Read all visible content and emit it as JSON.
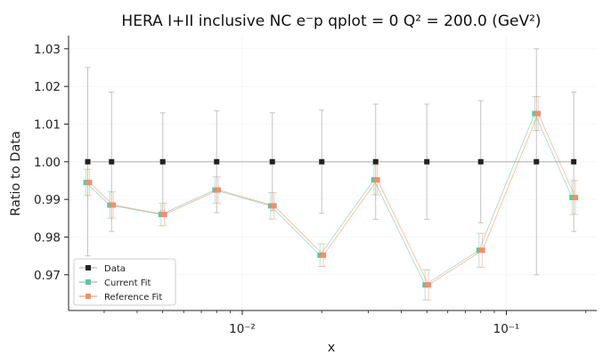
{
  "chart_data": {
    "type": "scatter",
    "title": "HERA I+II inclusive NC e⁻p qplot = 0 Q² = 200.0 (GeV²)",
    "xlabel": "x",
    "ylabel": "Ratio to Data",
    "xscale": "log",
    "xlim": [
      0.0022,
      0.22
    ],
    "ylim": [
      0.9605,
      1.0335
    ],
    "x_ticks": [
      {
        "value": 0.01,
        "label": "10⁻²"
      },
      {
        "value": 0.1,
        "label": "10⁻¹"
      }
    ],
    "y_ticks": [
      {
        "value": 0.97,
        "label": "0.97"
      },
      {
        "value": 0.98,
        "label": "0.98"
      },
      {
        "value": 0.99,
        "label": "0.99"
      },
      {
        "value": 1.0,
        "label": "1.00"
      },
      {
        "value": 1.01,
        "label": "1.01"
      },
      {
        "value": 1.02,
        "label": "1.02"
      },
      {
        "value": 1.03,
        "label": "1.03"
      }
    ],
    "grid": true,
    "legend_position": "lower-left",
    "x": [
      0.0026,
      0.0032,
      0.005,
      0.008,
      0.013,
      0.02,
      0.032,
      0.05,
      0.08,
      0.13,
      0.18
    ],
    "series": [
      {
        "name": "Data",
        "color": "#222222",
        "line_color": "#aaaaaa",
        "marker": "square",
        "values": [
          1.0,
          1.0,
          1.0,
          1.0,
          1.0,
          1.0,
          1.0,
          1.0,
          1.0,
          1.0,
          1.0
        ],
        "errors": [
          0.025,
          0.0185,
          0.013,
          0.0135,
          0.013,
          0.0137,
          0.0153,
          0.0153,
          0.0162,
          0.03,
          0.0185
        ]
      },
      {
        "name": "Current Fit",
        "color": "#66c2a5",
        "marker": "square",
        "values": [
          0.9945,
          0.9885,
          0.986,
          0.9925,
          0.9883,
          0.9752,
          0.9952,
          0.9673,
          0.9765,
          1.0128,
          0.9905
        ],
        "errors": [
          0.0035,
          0.0035,
          0.003,
          0.0035,
          0.0035,
          0.003,
          0.004,
          0.004,
          0.0045,
          0.0045,
          0.0045
        ]
      },
      {
        "name": "Reference Fit",
        "color": "#fc8d62",
        "marker": "square",
        "values": [
          0.9945,
          0.9885,
          0.986,
          0.9925,
          0.9883,
          0.9752,
          0.9952,
          0.9673,
          0.9765,
          1.0128,
          0.9905
        ],
        "errors": [
          0.0035,
          0.0035,
          0.003,
          0.0035,
          0.0035,
          0.003,
          0.004,
          0.004,
          0.0045,
          0.0045,
          0.0045
        ]
      }
    ]
  }
}
